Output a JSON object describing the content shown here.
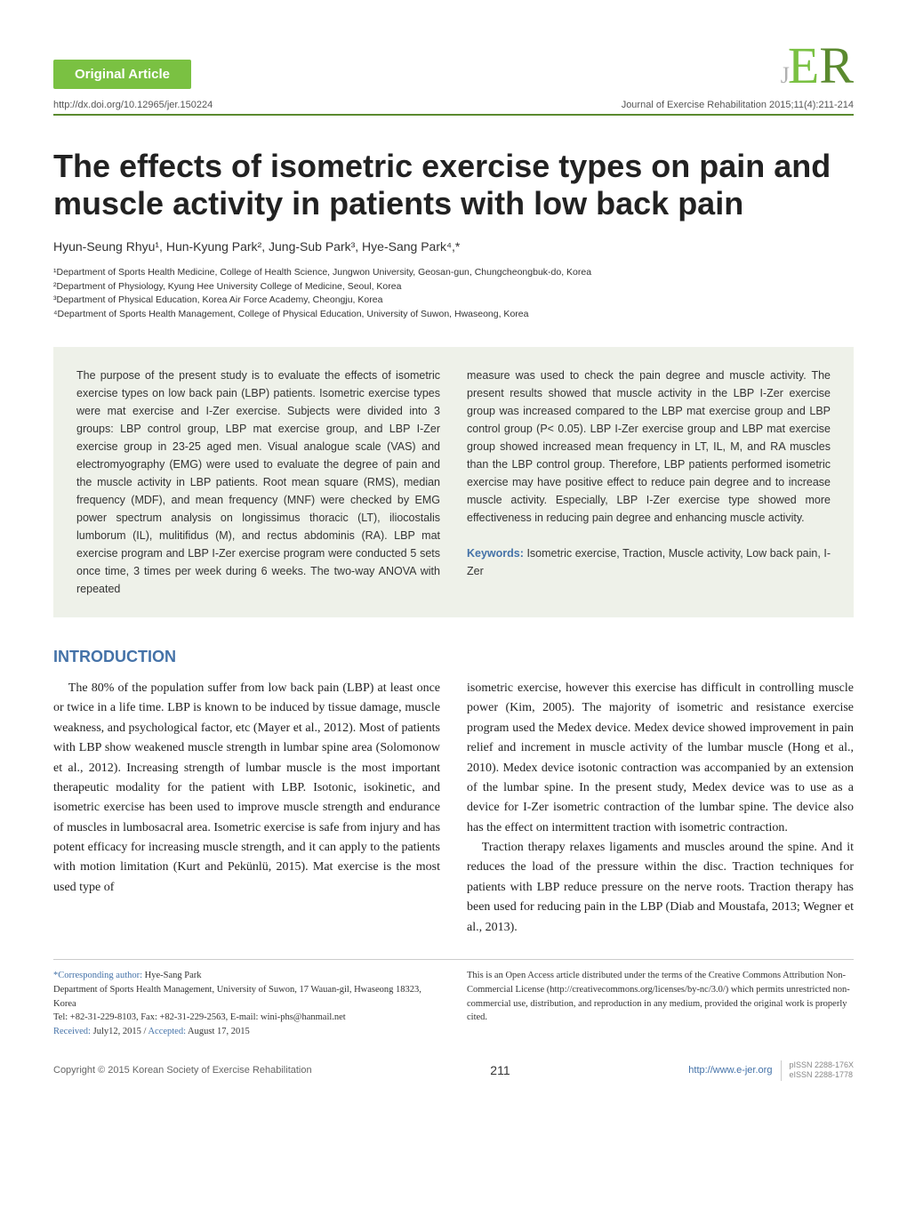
{
  "header": {
    "badge": "Original Article",
    "doi": "http://dx.doi.org/10.12965/jer.150224",
    "journal_cite": "Journal of Exercise Rehabilitation 2015;11(4):211-214",
    "logo": {
      "j": "J",
      "e": "E",
      "r": "R"
    }
  },
  "title": "The effects of isometric exercise types on pain and muscle activity in patients with low back pain",
  "authors": "Hyun-Seung Rhyu¹, Hun-Kyung Park², Jung-Sub Park³, Hye-Sang Park⁴,*",
  "affiliations": {
    "a1": "¹Department of Sports Health Medicine, College of Health Science, Jungwon University, Geosan-gun, Chungcheongbuk-do, Korea",
    "a2": "²Department of Physiology, Kyung Hee University College of Medicine, Seoul, Korea",
    "a3": "³Department of Physical Education, Korea Air Force Academy, Cheongju, Korea",
    "a4": "⁴Department of Sports Health Management, College of Physical Education, University of Suwon, Hwaseong, Korea"
  },
  "abstract": {
    "left": "The purpose of the present study is to evaluate the effects of isometric exercise types on low back pain (LBP) patients. Isometric exercise types were mat exercise and I-Zer exercise. Subjects were divided into 3 groups: LBP control group, LBP mat exercise group, and LBP I-Zer exercise group in 23-25 aged men. Visual analogue scale (VAS) and electromyography (EMG) were used to evaluate the degree of pain and the muscle activity in LBP patients. Root mean square (RMS), median frequency (MDF), and mean frequency (MNF) were checked by EMG power spectrum analysis on longissimus thoracic (LT), iliocostalis lumborum (IL), mulitifidus (M), and rectus abdominis (RA). LBP mat exercise program and LBP I-Zer exercise program were conducted 5 sets once time, 3 times per week during 6 weeks. The two-way ANOVA with repeated",
    "right": "measure was used to check the pain degree and muscle activity. The present results showed that muscle activity in the LBP I-Zer exercise group was increased compared to the LBP mat exercise group and LBP control group (P< 0.05). LBP I-Zer exercise group and LBP mat exercise group showed increased mean frequency in LT, IL, M, and RA muscles than the LBP control group. Therefore, LBP patients performed isometric exercise may have positive effect to reduce pain degree and to increase muscle activity. Especially, LBP I-Zer exercise type showed more effectiveness in reducing pain degree and enhancing muscle activity.",
    "keywords_label": "Keywords:",
    "keywords": " Isometric exercise, Traction, Muscle activity, Low back pain, I-Zer"
  },
  "section_intro": "INTRODUCTION",
  "body": {
    "left_p1": "The 80% of the population suffer from low back pain (LBP) at least once or twice in a life time. LBP is known to be induced by tissue damage, muscle weakness, and psychological factor, etc (Mayer et al., 2012). Most of patients with LBP show weakened muscle strength in lumbar spine area (Solomonow et al., 2012). Increasing strength of lumbar muscle is the most important therapeutic modality for the patient with LBP. Isotonic, isokinetic, and isometric exercise has been used to improve muscle strength and endurance of muscles in lumbosacral area. Isometric exercise is safe from injury and has potent efficacy for increasing muscle strength, and it can apply to the patients with motion limitation (Kurt and Pekünlü, 2015). Mat exercise is the most used type of",
    "right_p1": "isometric exercise, however this exercise has difficult in controlling muscle power (Kim, 2005). The majority of isometric and resistance exercise program used the Medex device. Medex device showed improvement in pain relief and increment in muscle activity of the lumbar muscle (Hong et al., 2010). Medex device isotonic contraction was accompanied by an extension of the lumbar spine. In the present study, Medex device was to use as a device for I-Zer isometric contraction of the lumbar spine. The device also has the effect on intermittent traction with isometric contraction.",
    "right_p2": "Traction therapy relaxes ligaments and muscles around the spine. And it reduces the load of the pressure within the disc. Traction techniques for patients with LBP reduce pressure on the nerve roots. Traction therapy has been used for reducing pain in the LBP (Diab and Moustafa, 2013; Wegner et al., 2013)."
  },
  "footer": {
    "left": {
      "corr_label": "*Corresponding author:",
      "corr_name": " Hye-Sang Park",
      "dept": "Department of Sports Health Management, University of Suwon, 17 Wauan-gil, Hwaseong 18323, Korea",
      "tel": "Tel: +82-31-229-8103, Fax: +82-31-229-2563, E-mail: wini-phs@hanmail.net",
      "received_label": "Received:",
      "received": " July12, 2015 / ",
      "accepted_label": "Accepted:",
      "accepted": " August 17, 2015"
    },
    "right": "This is an Open Access article distributed under the terms of the Creative Commons Attribution Non-Commercial License (http://creativecommons.org/licenses/by-nc/3.0/) which permits unrestricted non-commercial use, distribution, and reproduction in any medium, provided the original work is properly cited."
  },
  "bottom": {
    "copyright": "Copyright © 2015 Korean Society of Exercise Rehabilitation",
    "page": "211",
    "site": "http://www.e-jer.org",
    "pissn": "pISSN 2288-176X",
    "eissn": "eISSN 2288-1778"
  },
  "colors": {
    "green": "#7ac142",
    "dark_green": "#5b8a2f",
    "blue": "#4472a8",
    "abstract_bg": "#eef1e9"
  }
}
